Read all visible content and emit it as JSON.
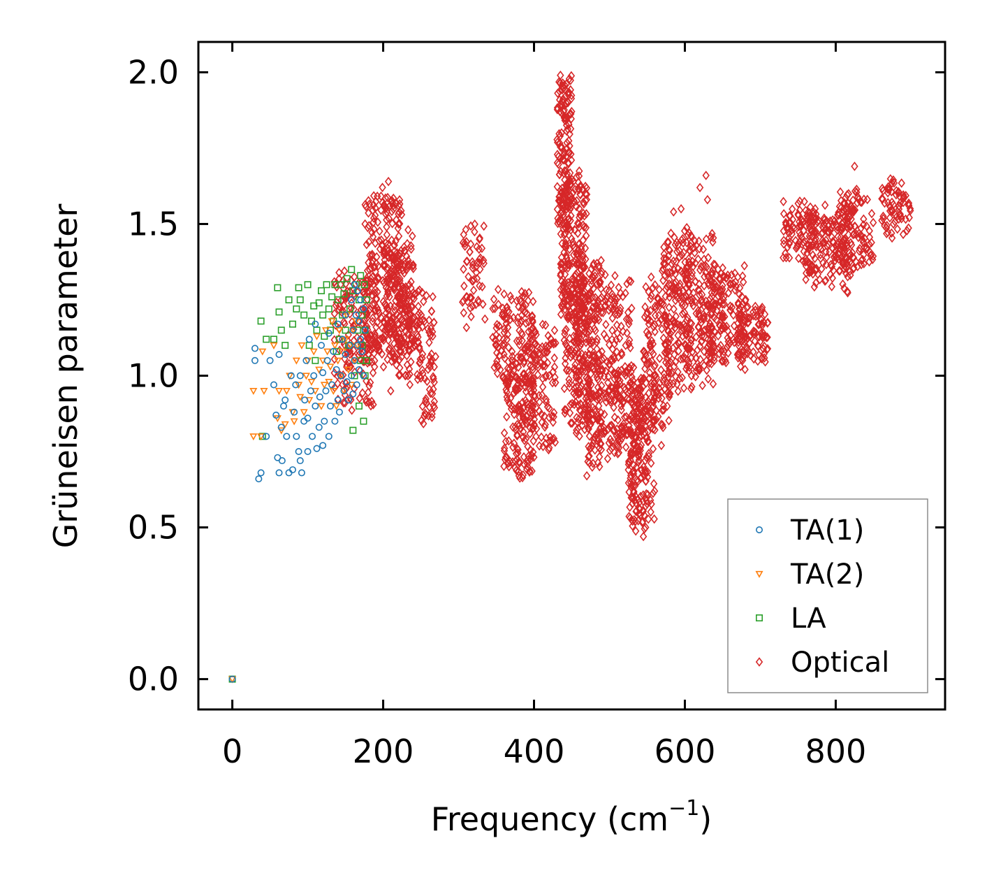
{
  "chart_data": {
    "type": "scatter",
    "title": "",
    "xlabel": "Frequency (cm",
    "xlabel_sup": "−1",
    "xlabel_close": ")",
    "ylabel": "Grüneisen parameter",
    "xlim": [
      -45,
      945
    ],
    "ylim": [
      -0.1,
      2.1
    ],
    "xticks": [
      0,
      200,
      400,
      600,
      800
    ],
    "xtick_labels": [
      "0",
      "200",
      "400",
      "600",
      "800"
    ],
    "yticks": [
      0.0,
      0.5,
      1.0,
      1.5,
      2.0
    ],
    "ytick_labels": [
      "0.0",
      "0.5",
      "1.0",
      "1.5",
      "2.0"
    ],
    "legend_position": "bottom-right",
    "series": [
      {
        "name": "TA(1)",
        "color": "#1f77b4",
        "marker": "circle",
        "points": [
          [
            0,
            0
          ],
          [
            30,
            1.09
          ],
          [
            30,
            1.05
          ],
          [
            35,
            0.66
          ],
          [
            38,
            0.68
          ],
          [
            45,
            0.8
          ],
          [
            50,
            1.05
          ],
          [
            55,
            0.97
          ],
          [
            58,
            0.87
          ],
          [
            60,
            0.73
          ],
          [
            62,
            1.07
          ],
          [
            62,
            0.68
          ],
          [
            65,
            0.83
          ],
          [
            66,
            0.72
          ],
          [
            68,
            0.9
          ],
          [
            70,
            0.92
          ],
          [
            72,
            0.8
          ],
          [
            75,
            0.68
          ],
          [
            78,
            1.0
          ],
          [
            80,
            0.69
          ],
          [
            82,
            0.88
          ],
          [
            84,
            0.97
          ],
          [
            85,
            0.8
          ],
          [
            88,
            0.75
          ],
          [
            90,
            1.0
          ],
          [
            90,
            0.72
          ],
          [
            92,
            0.68
          ],
          [
            95,
            0.85
          ],
          [
            96,
            0.92
          ],
          [
            98,
            1.05
          ],
          [
            100,
            0.86
          ],
          [
            100,
            0.75
          ],
          [
            102,
            1.12
          ],
          [
            104,
            0.95
          ],
          [
            106,
            0.8
          ],
          [
            108,
            1.0
          ],
          [
            110,
            0.9
          ],
          [
            110,
            1.17
          ],
          [
            112,
            0.76
          ],
          [
            115,
            0.83
          ],
          [
            116,
            0.93
          ],
          [
            118,
            1.1
          ],
          [
            120,
            0.77
          ],
          [
            120,
            1.01
          ],
          [
            122,
            0.85
          ],
          [
            124,
            0.95
          ],
          [
            126,
            1.05
          ],
          [
            128,
            0.8
          ],
          [
            128,
            1.14
          ],
          [
            130,
            0.9
          ],
          [
            132,
            0.97
          ],
          [
            134,
            1.08
          ],
          [
            136,
            0.85
          ],
          [
            138,
            1.02
          ],
          [
            140,
            0.92
          ],
          [
            140,
            1.17
          ],
          [
            142,
            0.88
          ],
          [
            144,
            1.0
          ],
          [
            146,
            1.12
          ],
          [
            148,
            0.95
          ],
          [
            150,
            1.07
          ],
          [
            150,
            1.2
          ],
          [
            152,
            0.98
          ],
          [
            154,
            0.92
          ],
          [
            156,
            1.1
          ],
          [
            158,
            1.25
          ],
          [
            158,
            1.0
          ],
          [
            160,
            1.15
          ],
          [
            160,
            0.94
          ],
          [
            162,
            1.3
          ],
          [
            162,
            1.05
          ],
          [
            164,
            1.2
          ],
          [
            165,
            0.97
          ],
          [
            166,
            1.28
          ],
          [
            166,
            1.1
          ],
          [
            168,
            1.18
          ],
          [
            168,
            1.02
          ],
          [
            170,
            1.25
          ],
          [
            170,
            1.12
          ],
          [
            172,
            1.08
          ],
          [
            174,
            1.22
          ],
          [
            174,
            1.0
          ],
          [
            176,
            1.15
          ]
        ]
      },
      {
        "name": "TA(2)",
        "color": "#ff7f0e",
        "marker": "triangle-down",
        "points": [
          [
            0,
            0
          ],
          [
            28,
            0.8
          ],
          [
            28,
            0.95
          ],
          [
            38,
            0.8
          ],
          [
            40,
            1.08
          ],
          [
            42,
            0.95
          ],
          [
            55,
            1.1
          ],
          [
            60,
            0.86
          ],
          [
            62,
            0.95
          ],
          [
            65,
            0.82
          ],
          [
            70,
            0.84
          ],
          [
            72,
            0.95
          ],
          [
            76,
            1.0
          ],
          [
            80,
            0.88
          ],
          [
            82,
            0.85
          ],
          [
            85,
            1.05
          ],
          [
            88,
            0.97
          ],
          [
            90,
            0.93
          ],
          [
            92,
            1.1
          ],
          [
            95,
            0.88
          ],
          [
            98,
            1.0
          ],
          [
            100,
            1.05
          ],
          [
            102,
            0.92
          ],
          [
            105,
            0.98
          ],
          [
            108,
            1.08
          ],
          [
            110,
            0.95
          ],
          [
            112,
            1.13
          ],
          [
            115,
            1.02
          ],
          [
            118,
            0.9
          ],
          [
            120,
            1.05
          ],
          [
            122,
            0.97
          ],
          [
            124,
            1.15
          ],
          [
            126,
            1.08
          ],
          [
            128,
            0.98
          ],
          [
            130,
            1.03
          ],
          [
            132,
            1.18
          ],
          [
            134,
            0.95
          ],
          [
            136,
            1.1
          ],
          [
            138,
            0.9
          ],
          [
            140,
            1.05
          ],
          [
            142,
            1.15
          ],
          [
            144,
            1.0
          ],
          [
            146,
            1.08
          ],
          [
            148,
            0.95
          ],
          [
            150,
            1.12
          ],
          [
            152,
            1.2
          ],
          [
            154,
            1.02
          ],
          [
            156,
            1.1
          ],
          [
            158,
            0.97
          ],
          [
            160,
            1.15
          ],
          [
            162,
            1.05
          ],
          [
            164,
            1.18
          ],
          [
            166,
            1.1
          ]
        ]
      },
      {
        "name": "LA",
        "color": "#2ca02c",
        "marker": "square",
        "points": [
          [
            0,
            0
          ],
          [
            38,
            1.18
          ],
          [
            40,
            0.8
          ],
          [
            45,
            1.12
          ],
          [
            55,
            1.12
          ],
          [
            60,
            1.29
          ],
          [
            62,
            1.21
          ],
          [
            65,
            1.15
          ],
          [
            70,
            1.1
          ],
          [
            75,
            1.25
          ],
          [
            80,
            1.17
          ],
          [
            85,
            1.22
          ],
          [
            88,
            1.29
          ],
          [
            90,
            1.25
          ],
          [
            95,
            1.2
          ],
          [
            100,
            1.3
          ],
          [
            102,
            1.1
          ],
          [
            105,
            1.18
          ],
          [
            108,
            1.23
          ],
          [
            110,
            1.05
          ],
          [
            112,
            1.15
          ],
          [
            115,
            1.24
          ],
          [
            118,
            1.28
          ],
          [
            120,
            1.2
          ],
          [
            122,
            1.13
          ],
          [
            125,
            1.3
          ],
          [
            128,
            1.22
          ],
          [
            130,
            1.15
          ],
          [
            132,
            1.26
          ],
          [
            134,
            1.18
          ],
          [
            136,
            1.3
          ],
          [
            138,
            1.08
          ],
          [
            140,
            1.25
          ],
          [
            142,
            1.12
          ],
          [
            144,
            1.3
          ],
          [
            146,
            1.2
          ],
          [
            148,
            1.27
          ],
          [
            150,
            1.15
          ],
          [
            152,
            1.32
          ],
          [
            154,
            1.1
          ],
          [
            156,
            1.22
          ],
          [
            158,
            1.35
          ],
          [
            160,
            1.28
          ],
          [
            160,
            0.82
          ],
          [
            162,
            1.0
          ],
          [
            164,
            1.3
          ],
          [
            166,
            1.15
          ],
          [
            168,
            1.25
          ],
          [
            168,
            0.9
          ],
          [
            170,
            1.33
          ],
          [
            170,
            1.05
          ],
          [
            172,
            1.2
          ],
          [
            172,
            1.1
          ],
          [
            174,
            0.85
          ],
          [
            175,
            1.3
          ],
          [
            176,
            1.0
          ],
          [
            176,
            1.15
          ],
          [
            178,
            1.25
          ],
          [
            178,
            1.05
          ]
        ]
      },
      {
        "name": "Optical",
        "color": "#d62728",
        "marker": "diamond",
        "clusters": [
          {
            "x": [
              135,
              190
            ],
            "y": [
              0.9,
              1.35
            ],
            "n": 160
          },
          {
            "x": [
              175,
              225
            ],
            "y": [
              1.05,
              1.6
            ],
            "n": 240
          },
          {
            "x": [
              200,
              240
            ],
            "y": [
              1.1,
              1.45
            ],
            "n": 140
          },
          {
            "x": [
              220,
              250
            ],
            "y": [
              1.0,
              1.3
            ],
            "n": 90
          },
          {
            "x": [
              250,
              270
            ],
            "y": [
              0.85,
              1.25
            ],
            "n": 60
          },
          {
            "x": [
              305,
              335
            ],
            "y": [
              1.18,
              1.48
            ],
            "n": 60
          },
          {
            "x": [
              345,
              400
            ],
            "y": [
              0.95,
              1.25
            ],
            "n": 160
          },
          {
            "x": [
              360,
              400
            ],
            "y": [
              0.68,
              1.0
            ],
            "n": 120
          },
          {
            "x": [
              395,
              430
            ],
            "y": [
              0.75,
              1.15
            ],
            "n": 110
          },
          {
            "x": [
              430,
              450
            ],
            "y": [
              1.5,
              1.98
            ],
            "n": 140
          },
          {
            "x": [
              435,
              470
            ],
            "y": [
              1.2,
              1.65
            ],
            "n": 200
          },
          {
            "x": [
              440,
              475
            ],
            "y": [
              0.85,
              1.3
            ],
            "n": 150
          },
          {
            "x": [
              455,
              490
            ],
            "y": [
              0.8,
              1.4
            ],
            "n": 160
          },
          {
            "x": [
              470,
              500
            ],
            "y": [
              0.7,
              1.05
            ],
            "n": 80
          },
          {
            "x": [
              480,
              530
            ],
            "y": [
              0.95,
              1.3
            ],
            "n": 120
          },
          {
            "x": [
              500,
              545
            ],
            "y": [
              0.75,
              1.0
            ],
            "n": 140
          },
          {
            "x": [
              525,
              560
            ],
            "y": [
              0.5,
              0.95
            ],
            "n": 160
          },
          {
            "x": [
              545,
              580
            ],
            "y": [
              0.8,
              1.3
            ],
            "n": 140
          },
          {
            "x": [
              570,
              610
            ],
            "y": [
              0.95,
              1.45
            ],
            "n": 170
          },
          {
            "x": [
              600,
              640
            ],
            "y": [
              1.0,
              1.45
            ],
            "n": 160
          },
          {
            "x": [
              630,
              680
            ],
            "y": [
              1.05,
              1.35
            ],
            "n": 150
          },
          {
            "x": [
              670,
              710
            ],
            "y": [
              1.05,
              1.22
            ],
            "n": 100
          },
          {
            "x": [
              730,
              775
            ],
            "y": [
              1.4,
              1.55
            ],
            "n": 90
          },
          {
            "x": [
              760,
              820
            ],
            "y": [
              1.3,
              1.55
            ],
            "n": 150
          },
          {
            "x": [
              800,
              850
            ],
            "y": [
              1.35,
              1.6
            ],
            "n": 120
          },
          {
            "x": [
              860,
              900
            ],
            "y": [
              1.48,
              1.62
            ],
            "n": 70
          }
        ],
        "points": [
          [
            435,
            1.99
          ],
          [
            440,
            1.95
          ],
          [
            445,
            1.9
          ],
          [
            628,
            1.66
          ],
          [
            620,
            1.62
          ],
          [
            630,
            1.58
          ],
          [
            595,
            1.55
          ],
          [
            585,
            1.54
          ],
          [
            545,
            0.47
          ],
          [
            548,
            0.5
          ],
          [
            470,
            0.67
          ],
          [
            380,
            0.67
          ],
          [
            207,
            1.64
          ],
          [
            825,
            1.69
          ],
          [
            210,
            0.95
          ]
        ]
      }
    ]
  }
}
